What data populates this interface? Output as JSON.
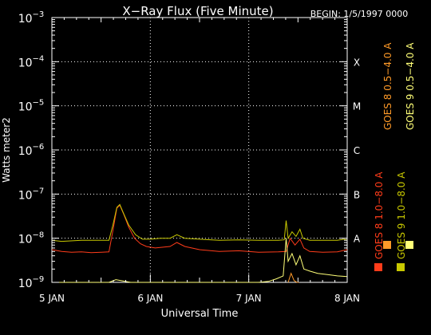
{
  "chart_data": {
    "type": "line",
    "title": "X−Ray Flux (Five Minute)",
    "begin_label": "BEGIN: 1/5/1997 0000",
    "ylabel": "Watts meter2",
    "xlabel": "Universal Time",
    "x_unit": "days since 1997-01-05 00:00 UT",
    "xlim": [
      0,
      3
    ],
    "x_ticks": [
      {
        "x": 0,
        "label": "5 JAN"
      },
      {
        "x": 1,
        "label": "6 JAN"
      },
      {
        "x": 2,
        "label": "7 JAN"
      },
      {
        "x": 3,
        "label": "8 JAN"
      }
    ],
    "y_scale": "log",
    "ylim": [
      1e-09,
      0.001
    ],
    "y_ticks": [
      {
        "exp": -9,
        "base": "10",
        "power": "−9"
      },
      {
        "exp": -8,
        "base": "10",
        "power": "−8"
      },
      {
        "exp": -7,
        "base": "10",
        "power": "−7"
      },
      {
        "exp": -6,
        "base": "10",
        "power": "−6"
      },
      {
        "exp": -5,
        "base": "10",
        "power": "−5"
      },
      {
        "exp": -4,
        "base": "10",
        "power": "−4"
      },
      {
        "exp": -3,
        "base": "10",
        "power": "−3"
      }
    ],
    "flare_classes": [
      {
        "exp": -8,
        "label": "A"
      },
      {
        "exp": -7,
        "label": "B"
      },
      {
        "exp": -6,
        "label": "C"
      },
      {
        "exp": -5,
        "label": "M"
      },
      {
        "exp": -4,
        "label": "X"
      }
    ],
    "grid": {
      "horizontal": "dotted",
      "vertical": "dotted"
    },
    "legend_position": "right, vertical",
    "series": [
      {
        "name": "GOES 8 1.0−8.0 A",
        "color": "#ff3c1a",
        "points": [
          [
            0.0,
            5.5e-09
          ],
          [
            0.1,
            5e-09
          ],
          [
            0.2,
            4.8e-09
          ],
          [
            0.3,
            4.9e-09
          ],
          [
            0.4,
            4.7e-09
          ],
          [
            0.5,
            4.8e-09
          ],
          [
            0.58,
            4.9e-09
          ],
          [
            0.62,
            1.5e-08
          ],
          [
            0.66,
            4.8e-08
          ],
          [
            0.69,
            5.6e-08
          ],
          [
            0.73,
            3.5e-08
          ],
          [
            0.78,
            1.8e-08
          ],
          [
            0.84,
            1e-08
          ],
          [
            0.9,
            7.5e-09
          ],
          [
            0.96,
            6.5e-09
          ],
          [
            1.05,
            6e-09
          ],
          [
            1.2,
            6.5e-09
          ],
          [
            1.27,
            8e-09
          ],
          [
            1.35,
            6.5e-09
          ],
          [
            1.5,
            5.5e-09
          ],
          [
            1.7,
            5e-09
          ],
          [
            1.9,
            5.2e-09
          ],
          [
            2.1,
            4.8e-09
          ],
          [
            2.3,
            4.9e-09
          ],
          [
            2.38,
            5e-09
          ],
          [
            2.42,
            1e-08
          ],
          [
            2.47,
            7e-09
          ],
          [
            2.52,
            9.5e-09
          ],
          [
            2.56,
            6e-09
          ],
          [
            2.62,
            5e-09
          ],
          [
            2.75,
            4.8e-09
          ],
          [
            2.9,
            4.9e-09
          ],
          [
            3.0,
            5.5e-09
          ]
        ]
      },
      {
        "name": "GOES 8 0.5−4.0 A",
        "color": "#ff9a28",
        "points": [
          [
            2.4,
            1e-09
          ],
          [
            2.43,
            1.6e-09
          ],
          [
            2.46,
            1.1e-09
          ],
          [
            2.49,
            1e-09
          ],
          [
            2.51,
            1e-09
          ]
        ]
      },
      {
        "name": "GOES 9 1.0−8.0 A",
        "color": "#c8c800",
        "points": [
          [
            0.0,
            9e-09
          ],
          [
            0.1,
            8.5e-09
          ],
          [
            0.3,
            9e-09
          ],
          [
            0.5,
            9e-09
          ],
          [
            0.58,
            9e-09
          ],
          [
            0.62,
            2e-08
          ],
          [
            0.66,
            5e-08
          ],
          [
            0.69,
            5.8e-08
          ],
          [
            0.73,
            3.6e-08
          ],
          [
            0.78,
            2e-08
          ],
          [
            0.85,
            1.2e-08
          ],
          [
            0.92,
            9.5e-09
          ],
          [
            1.0,
            9.5e-09
          ],
          [
            1.1,
            1e-08
          ],
          [
            1.2,
            1e-08
          ],
          [
            1.27,
            1.2e-08
          ],
          [
            1.35,
            1e-08
          ],
          [
            1.5,
            9.5e-09
          ],
          [
            1.7,
            9e-09
          ],
          [
            1.9,
            9.2e-09
          ],
          [
            2.1,
            9e-09
          ],
          [
            2.3,
            9e-09
          ],
          [
            2.36,
            9.2e-09
          ],
          [
            2.38,
            2.5e-08
          ],
          [
            2.4,
            1e-08
          ],
          [
            2.44,
            1.4e-08
          ],
          [
            2.48,
            1.1e-08
          ],
          [
            2.52,
            1.6e-08
          ],
          [
            2.55,
            1e-08
          ],
          [
            2.62,
            9e-09
          ],
          [
            2.75,
            9e-09
          ],
          [
            2.9,
            9e-09
          ],
          [
            2.97,
            9.5e-09
          ],
          [
            3.0,
            9e-09
          ]
        ]
      },
      {
        "name": "GOES 9 0.5−4.0 A",
        "color": "#ffff78",
        "points": [
          [
            0.0,
            1e-09
          ],
          [
            0.2,
            1e-09
          ],
          [
            0.4,
            1e-09
          ],
          [
            0.58,
            1e-09
          ],
          [
            0.65,
            1.15e-09
          ],
          [
            0.7,
            1.1e-09
          ],
          [
            0.8,
            1e-09
          ],
          [
            1.0,
            1e-09
          ],
          [
            1.4,
            1e-09
          ],
          [
            1.8,
            1e-09
          ],
          [
            2.1,
            1e-09
          ],
          [
            2.2,
            1.05e-09
          ],
          [
            2.28,
            1.2e-09
          ],
          [
            2.35,
            1.4e-09
          ],
          [
            2.38,
            1e-08
          ],
          [
            2.4,
            3e-09
          ],
          [
            2.44,
            4.5e-09
          ],
          [
            2.48,
            2.5e-09
          ],
          [
            2.52,
            4e-09
          ],
          [
            2.56,
            2e-09
          ],
          [
            2.62,
            1.8e-09
          ],
          [
            2.7,
            1.6e-09
          ],
          [
            2.8,
            1.5e-09
          ],
          [
            2.9,
            1.4e-09
          ],
          [
            3.0,
            1.35e-09
          ]
        ]
      }
    ]
  }
}
